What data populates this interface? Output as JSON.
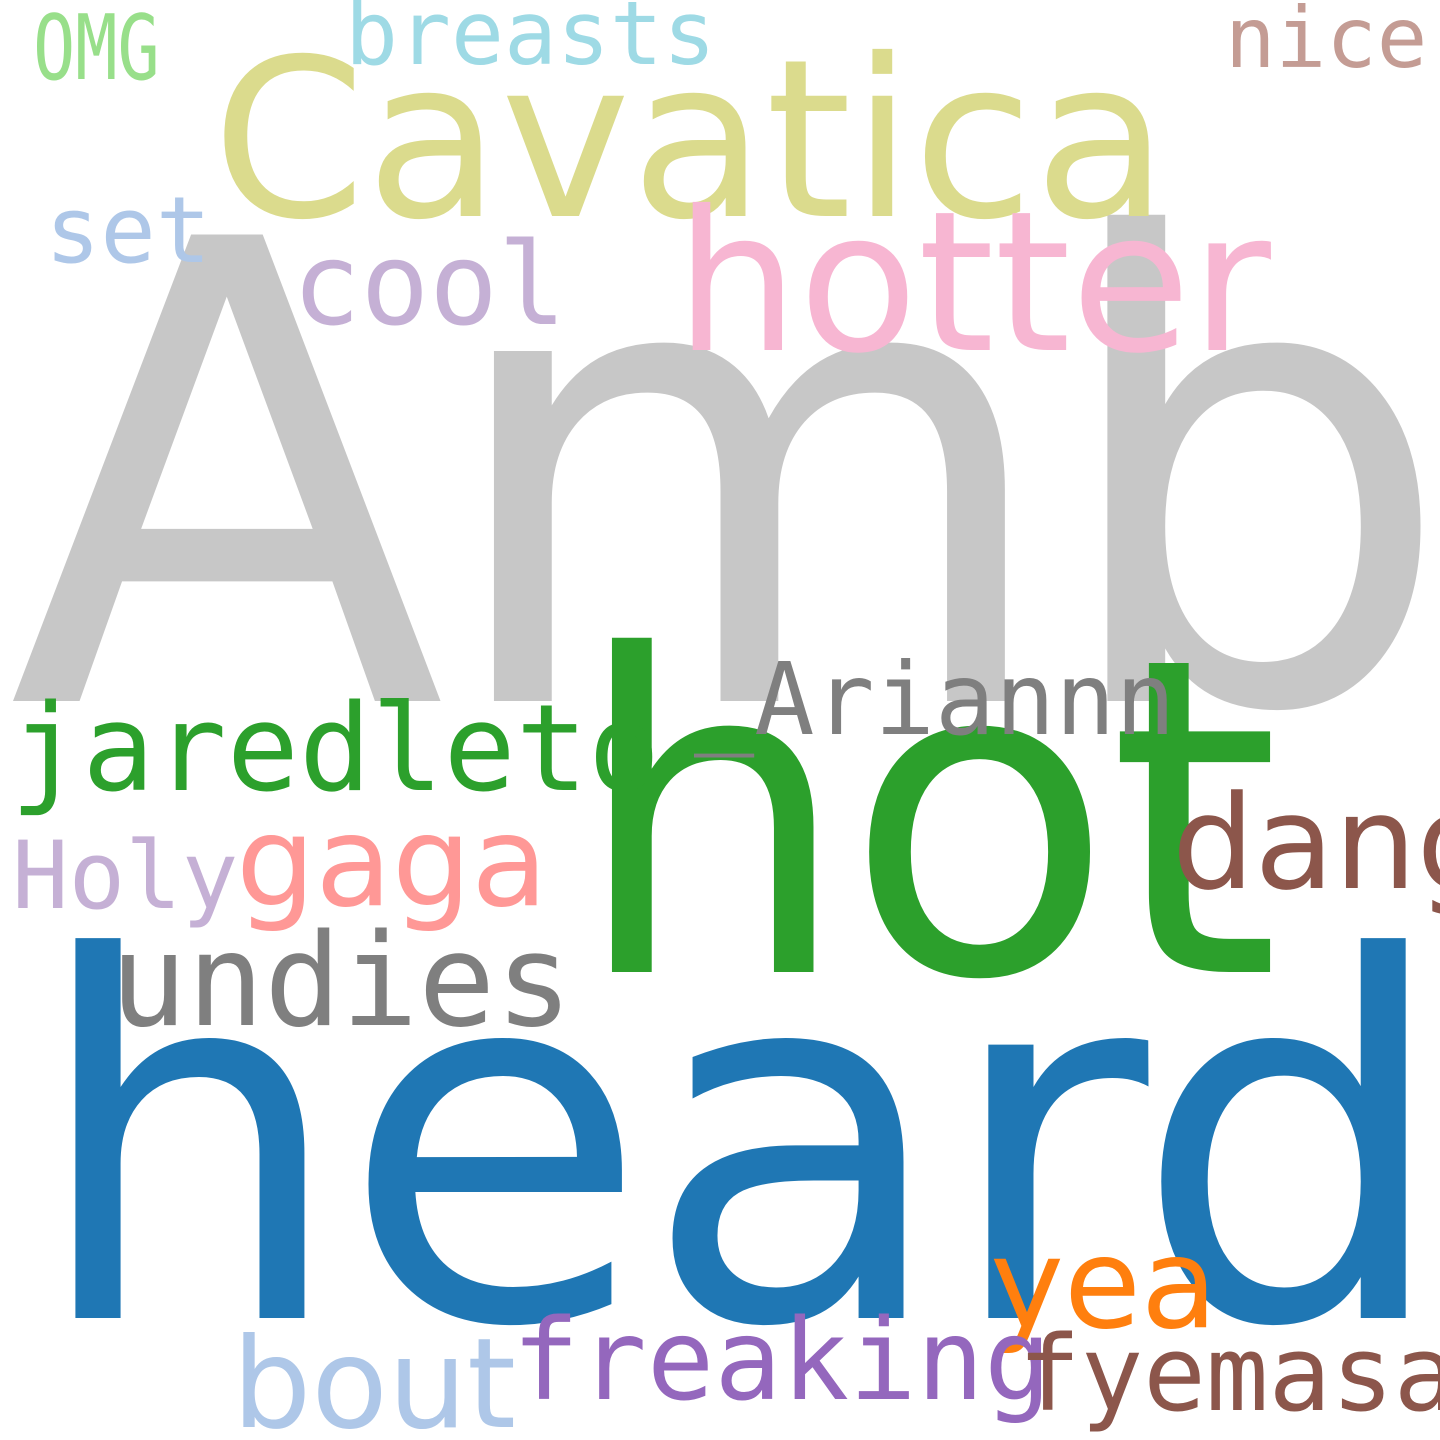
{
  "words": {
    "amber": {
      "text": "Amber",
      "color": "#c7c7c7"
    },
    "hot": {
      "text": "hot",
      "color": "#2ca02c"
    },
    "heard": {
      "text": "heard",
      "color": "#1f77b4"
    },
    "cavatica": {
      "text": "Cavatica",
      "color": "#dbdb8d"
    },
    "hotter": {
      "text": "hotter",
      "color": "#f7b6d2"
    },
    "jaredleto": {
      "text": "jaredleto",
      "color": "#2ca02c"
    },
    "ariannn": {
      "text": "_Ariannn",
      "color": "#7f7f7f"
    },
    "undies": {
      "text": "undies",
      "color": "#7f7f7f"
    },
    "dang": {
      "text": "dang",
      "color": "#8c564b"
    },
    "gaga": {
      "text": "gaga",
      "color": "#ff9896"
    },
    "freaking": {
      "text": "freaking",
      "color": "#9467bd"
    },
    "fyemasai": {
      "text": "fyemasai",
      "color": "#8c564b"
    },
    "bout": {
      "text": "bout",
      "color": "#aec7e8"
    },
    "yea": {
      "text": "yea",
      "color": "#ff7f0e"
    },
    "breasts": {
      "text": "breasts",
      "color": "#9edae5"
    },
    "nice": {
      "text": "nice",
      "color": "#c49c94"
    },
    "omg": {
      "text": "OMG",
      "color": "#98df8a"
    },
    "cool": {
      "text": "cool",
      "color": "#c5b0d5"
    },
    "set": {
      "text": "set",
      "color": "#aec7e8"
    },
    "holy": {
      "text": "Holy",
      "color": "#c5b0d5"
    }
  }
}
